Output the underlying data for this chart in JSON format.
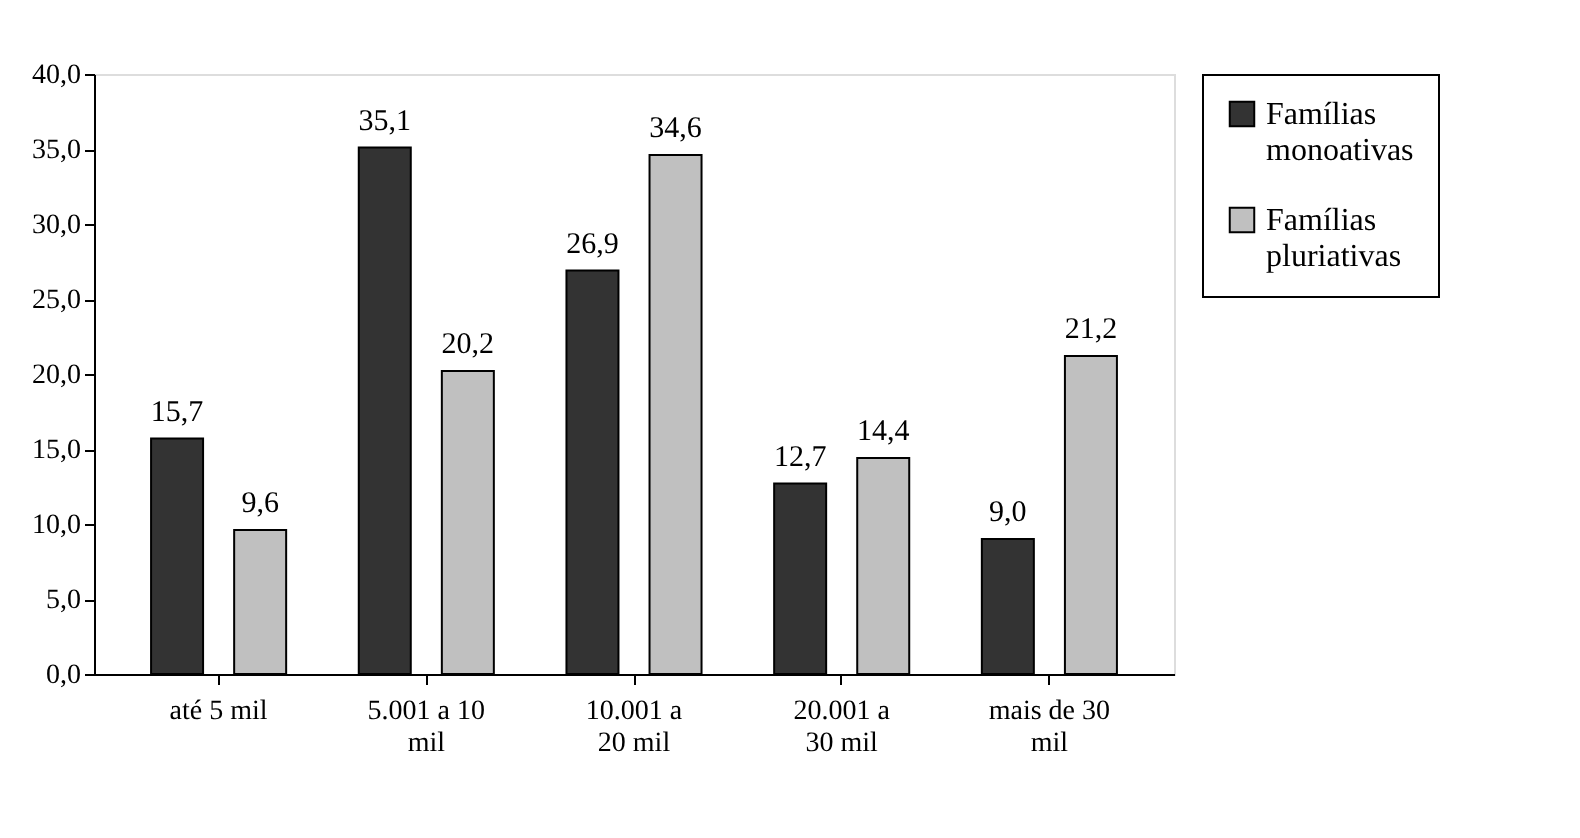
{
  "chart_data": {
    "type": "bar",
    "categories": [
      "até 5 mil",
      "5.001 a 10 mil",
      "10.001 a 20 mil",
      "20.001 a 30 mil",
      "mais de 30 mil"
    ],
    "series": [
      {
        "name": "Famílias monoativas",
        "color": "#333333",
        "values": [
          15.7,
          35.1,
          26.9,
          12.7,
          9.0
        ],
        "value_labels": [
          "15,7",
          "35,1",
          "26,9",
          "12,7",
          "9,0"
        ]
      },
      {
        "name": "Famílias pluriativas",
        "color": "#c0c0c0",
        "values": [
          9.6,
          20.2,
          34.6,
          14.4,
          21.2
        ],
        "value_labels": [
          "9,6",
          "20,2",
          "34,6",
          "14,4",
          "21,2"
        ]
      }
    ],
    "ylim": [
      0,
      40
    ],
    "yticks": [
      {
        "value": 0,
        "label": "0,0"
      },
      {
        "value": 5,
        "label": "5,0"
      },
      {
        "value": 10,
        "label": "10,0"
      },
      {
        "value": 15,
        "label": "15,0"
      },
      {
        "value": 20,
        "label": "20,0"
      },
      {
        "value": 25,
        "label": "25,0"
      },
      {
        "value": 30,
        "label": "30,0"
      },
      {
        "value": 35,
        "label": "35,0"
      },
      {
        "value": 40,
        "label": "40,0"
      }
    ],
    "grid": false,
    "legend": "right"
  }
}
